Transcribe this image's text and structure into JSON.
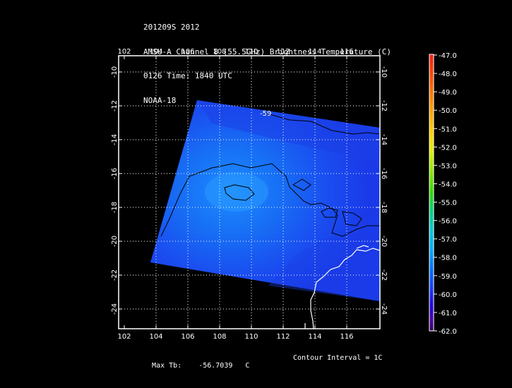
{
  "title": {
    "line1": "201209S 2012",
    "line2": "AMSU-A Channel 8 (55.5GHz) Brightness Temperature (C)",
    "line3": "0126 Time: 1840 UTC",
    "line4": "NOAA-18"
  },
  "map": {
    "lon_ticks": [
      "102",
      "104",
      "106",
      "108",
      "110",
      "112",
      "114",
      "116"
    ],
    "lat_ticks": [
      "-10",
      "-12",
      "-14",
      "-16",
      "-18",
      "-20",
      "-22",
      "-24"
    ],
    "contour_label": "-59",
    "grid": true
  },
  "colorbar": {
    "labels": [
      "-47.0",
      "-48.0",
      "-49.0",
      "-50.0",
      "-51.0",
      "-52.0",
      "-53.0",
      "-54.0",
      "-55.0",
      "-56.0",
      "-57.0",
      "-58.0",
      "-59.0",
      "-60.0",
      "-61.0",
      "-62.0"
    ],
    "colors": [
      "#ff1a1a",
      "#ff3300",
      "#ff6600",
      "#ff8c00",
      "#ffb300",
      "#e6d000",
      "#c8f000",
      "#7fe600",
      "#33d400",
      "#00c8a0",
      "#00b4ff",
      "#0088ff",
      "#1a44ff",
      "#2200e0",
      "#5a00b0",
      "#3a0070"
    ]
  },
  "footer": {
    "max_label": "Max Tb:",
    "max_value": "-56.7039",
    "max_unit": "C",
    "contour_label": "Contour Interval = 1C"
  }
}
